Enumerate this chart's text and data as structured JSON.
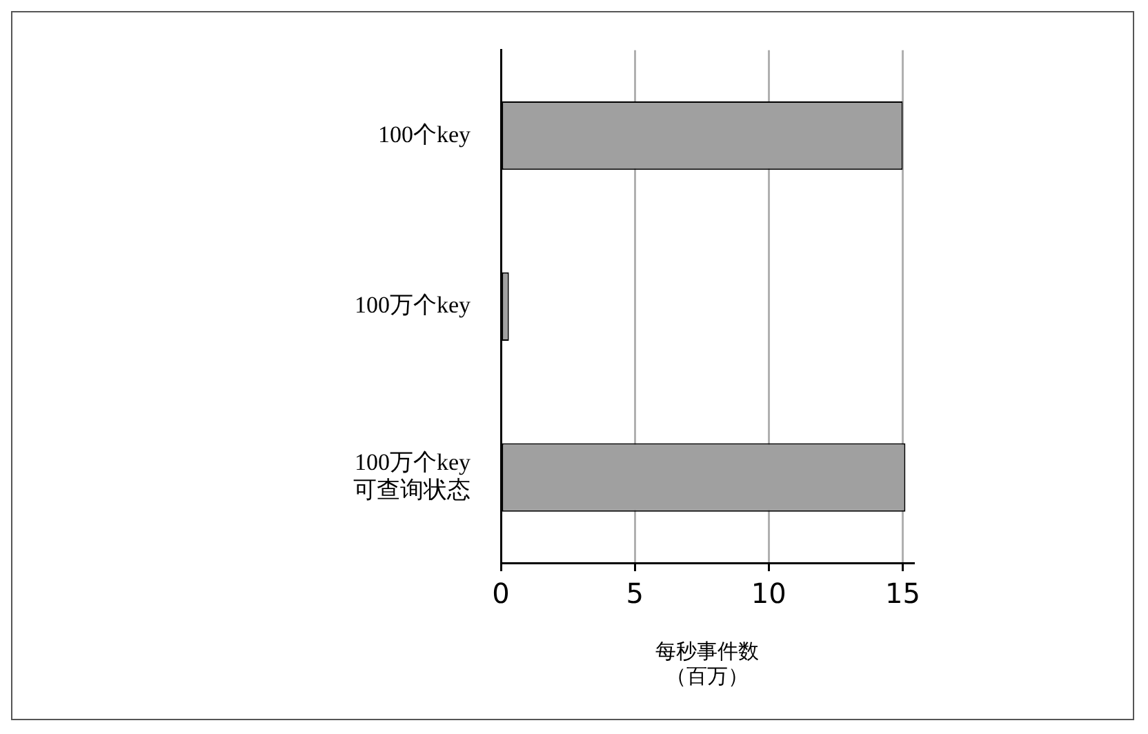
{
  "chart_data": {
    "type": "bar",
    "orientation": "horizontal",
    "categories": [
      "100个key",
      "100万个key",
      "100万个key\n可查询状态"
    ],
    "values": [
      15.0,
      0.3,
      15.1
    ],
    "color": "#a0a0a0",
    "xlabel": "每秒事件数（百万）",
    "xlim": [
      0,
      15.4
    ],
    "xticks": [
      0,
      5,
      10,
      15
    ],
    "grid": "x",
    "legend": false
  }
}
